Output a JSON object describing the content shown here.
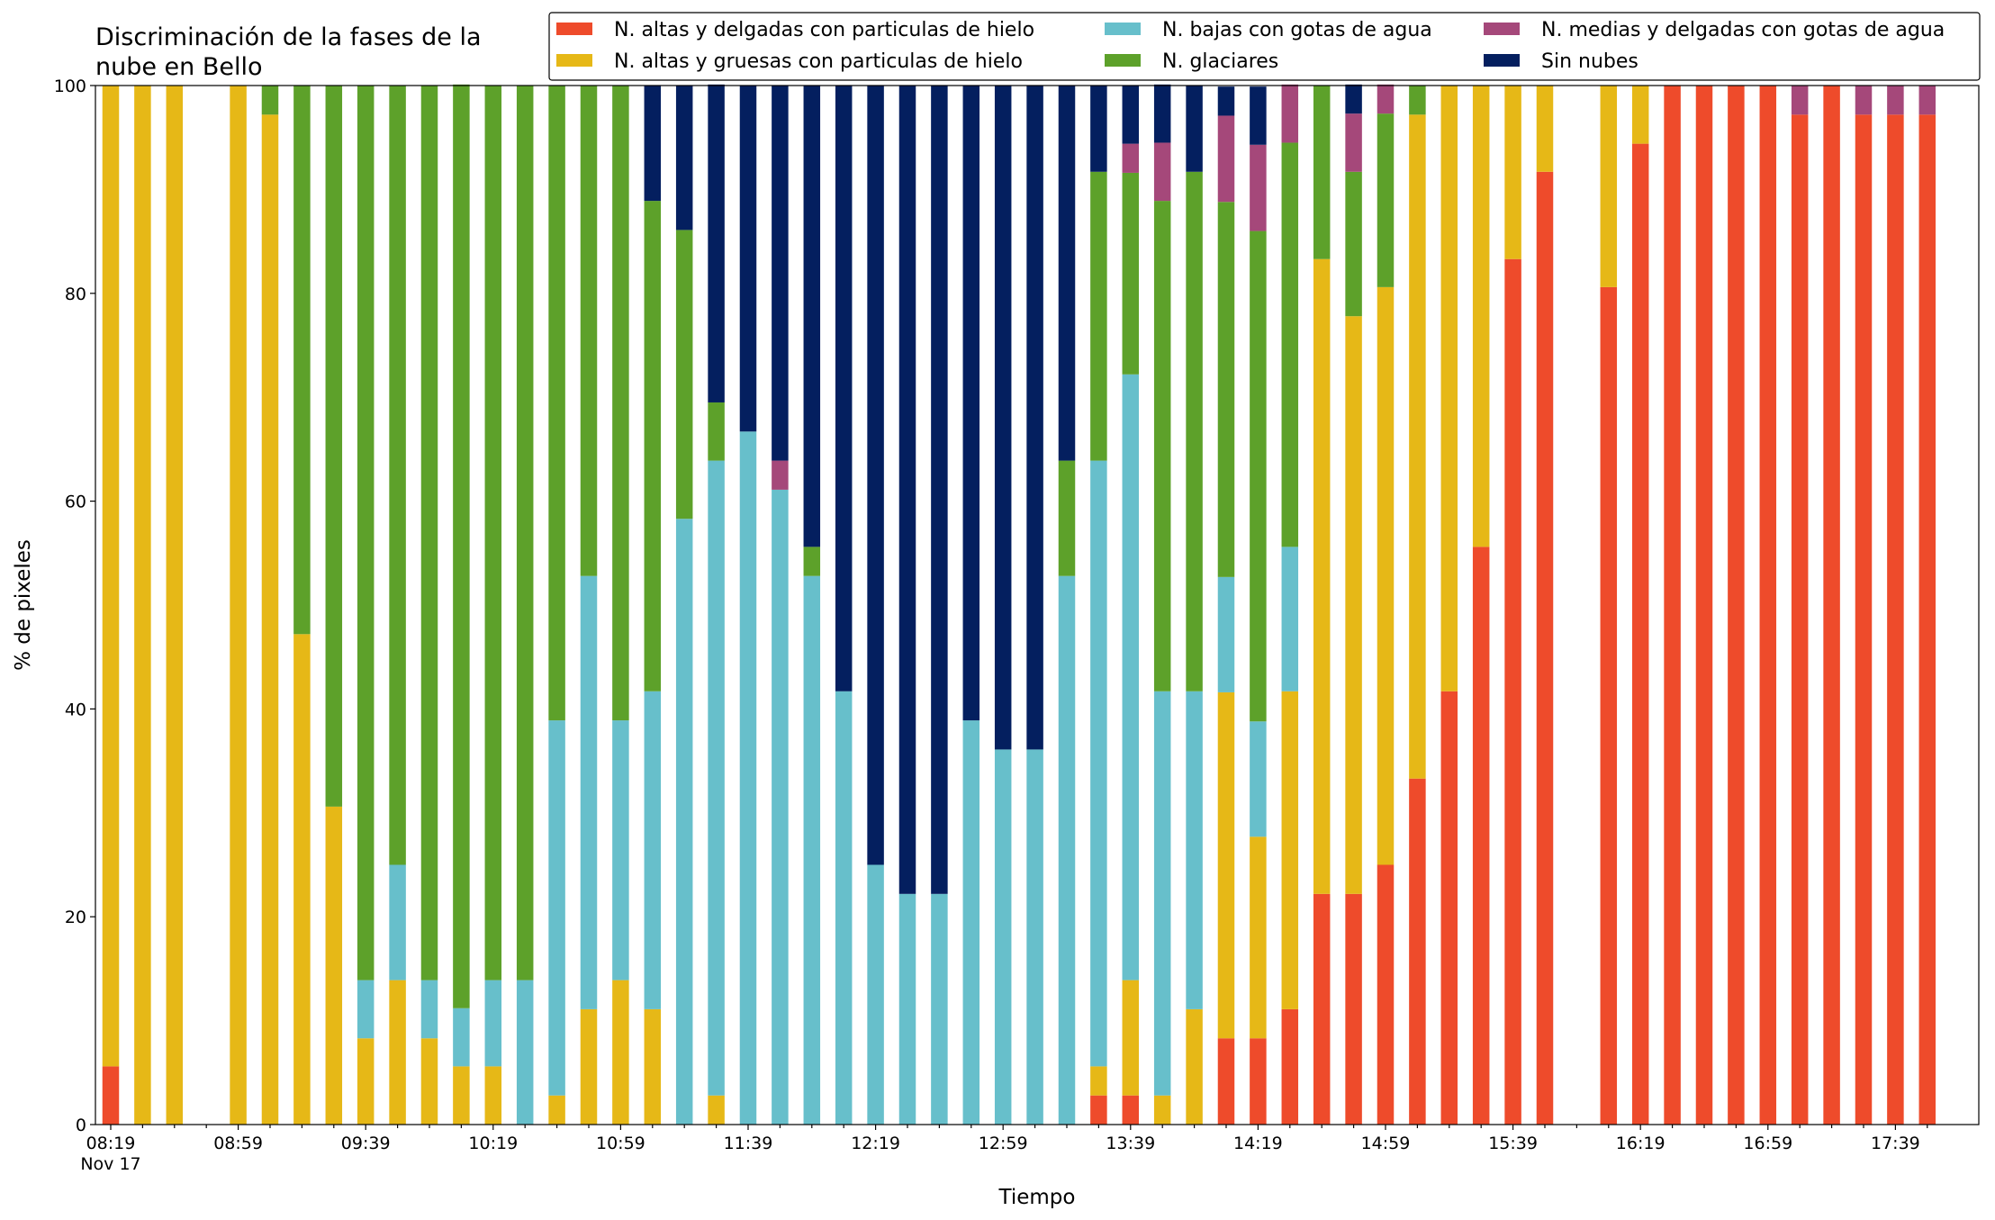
{
  "chart_data": {
    "type": "stacked_bar",
    "title": [
      "Discriminación de la fases de la",
      "nube en Bello"
    ],
    "xlabel": "Tiempo",
    "ylabel": "% de pixeles",
    "date_label": "Nov 17",
    "categories": [
      "08:19",
      null,
      null,
      null,
      "08:59",
      null,
      null,
      null,
      "09:39",
      null,
      null,
      null,
      "10:19",
      null,
      null,
      null,
      "10:59",
      null,
      null,
      null,
      "11:39",
      null,
      null,
      null,
      "12:19",
      null,
      null,
      null,
      "12:59",
      null,
      null,
      null,
      "13:39",
      null,
      null,
      null,
      "14:19",
      null,
      null,
      null,
      "14:59",
      null,
      null,
      null,
      "15:39",
      null,
      null,
      null,
      "16:19",
      null,
      null,
      null,
      "16:59",
      null,
      null,
      null,
      "17:39",
      null
    ],
    "ylim": [
      0,
      100
    ],
    "yticks": [
      0,
      20,
      40,
      60,
      80,
      100
    ],
    "grid": false,
    "legend": "top-right",
    "legend_columns": 3,
    "series": [
      {
        "name": "N. altas y delgadas con particulas de hielo",
        "color": "#ee4b2b",
        "values": [
          5.6,
          0,
          0,
          0,
          0,
          0,
          0,
          0,
          0,
          0,
          0,
          0,
          0,
          0,
          0,
          0,
          0,
          0,
          0,
          0,
          0,
          0,
          0,
          0,
          0,
          0,
          0,
          0,
          0,
          0,
          0,
          2.8,
          2.8,
          0,
          0,
          8.3,
          8.3,
          11.1,
          22.2,
          22.2,
          25,
          33.3,
          41.7,
          55.6,
          83.3,
          91.7,
          0,
          80.6,
          94.4,
          100,
          100,
          100,
          100,
          97.2,
          100,
          97.2,
          97.2,
          97.2
        ]
      },
      {
        "name": "N. altas y gruesas con particulas de hielo",
        "color": "#e6b817",
        "values": [
          94.4,
          100,
          100,
          0,
          100,
          97.2,
          47.2,
          30.6,
          8.3,
          13.9,
          8.3,
          5.6,
          5.6,
          0,
          2.8,
          11.1,
          13.9,
          11.1,
          0,
          2.8,
          0,
          0,
          0,
          0,
          0,
          0,
          0,
          0,
          0,
          0,
          0,
          2.8,
          11.1,
          2.8,
          11.1,
          33.3,
          19.4,
          30.6,
          61.1,
          55.6,
          55.6,
          63.9,
          58.3,
          44.4,
          16.7,
          8.3,
          0,
          19.4,
          5.6,
          0,
          0,
          0,
          0,
          0,
          0,
          0,
          0,
          0
        ]
      },
      {
        "name": "N. bajas con gotas de agua",
        "color": "#67bfcb",
        "values": [
          0,
          0,
          0,
          0,
          0,
          0,
          0,
          0,
          5.6,
          11.1,
          5.6,
          5.6,
          8.3,
          13.9,
          36.1,
          41.7,
          25,
          30.6,
          58.3,
          61.1,
          66.7,
          61.1,
          52.8,
          41.7,
          25,
          22.2,
          22.2,
          38.9,
          36.1,
          36.1,
          52.8,
          58.3,
          58.3,
          38.9,
          30.6,
          11.1,
          11.1,
          13.9,
          0,
          0,
          0,
          0,
          0,
          0,
          0,
          0,
          0,
          0,
          0,
          0,
          0,
          0,
          0,
          0,
          0,
          0,
          0,
          0
        ]
      },
      {
        "name": "N. glaciares",
        "color": "#5da12a",
        "values": [
          0,
          0,
          0,
          0,
          0,
          2.8,
          52.8,
          69.4,
          86.1,
          75,
          86.1,
          88.9,
          86.1,
          86.1,
          61.1,
          47.2,
          61.1,
          47.2,
          27.8,
          5.6,
          0,
          0,
          2.8,
          0,
          0,
          0,
          0,
          0,
          0,
          0,
          11.1,
          27.8,
          19.4,
          47.2,
          50,
          36.1,
          47.2,
          38.9,
          16.7,
          13.9,
          16.7,
          2.8,
          0,
          0,
          0,
          0,
          0,
          0,
          0,
          0,
          0,
          0,
          0,
          0,
          0,
          0,
          0,
          0
        ]
      },
      {
        "name": "N. medias y delgadas con gotas de agua",
        "color": "#a5487a",
        "values": [
          0,
          0,
          0,
          0,
          0,
          0,
          0,
          0,
          0,
          0,
          0,
          0,
          0,
          0,
          0,
          0,
          0,
          0,
          0,
          0,
          0,
          2.8,
          0,
          0,
          0,
          0,
          0,
          0,
          0,
          0,
          0,
          0,
          2.8,
          5.6,
          0,
          8.3,
          8.3,
          5.6,
          0,
          5.6,
          2.8,
          0,
          0,
          0,
          0,
          0,
          0,
          0,
          0,
          0,
          0,
          0,
          0,
          2.8,
          0,
          2.8,
          2.8,
          2.8
        ]
      },
      {
        "name": "Sin nubes",
        "color": "#041f5f",
        "values": [
          0,
          0,
          0,
          0,
          0,
          0,
          0,
          0,
          0,
          0,
          0,
          0,
          0,
          0,
          0,
          0,
          0,
          11.1,
          13.9,
          30.6,
          33.3,
          36.1,
          44.4,
          58.3,
          75,
          77.8,
          77.8,
          61.1,
          63.9,
          63.9,
          36.1,
          8.3,
          5.6,
          5.6,
          8.3,
          2.8,
          5.6,
          0,
          0,
          2.8,
          0,
          0,
          0,
          0,
          0,
          0,
          0,
          0,
          0,
          0,
          0,
          0,
          0,
          0,
          0,
          0,
          0,
          0
        ]
      }
    ]
  }
}
